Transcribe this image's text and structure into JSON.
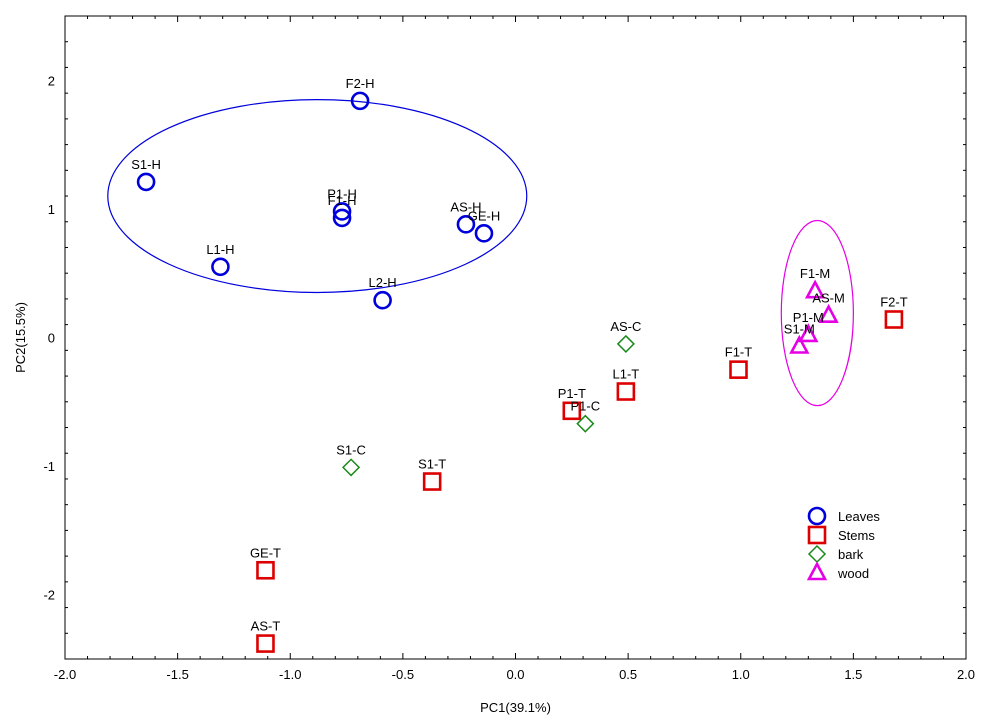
{
  "chart_data": {
    "type": "scatter",
    "title": "",
    "xlabel": "PC1(39.1%)",
    "ylabel": "PC2(15.5%)",
    "xlim": [
      -2.0,
      2.0
    ],
    "ylim": [
      -2.5,
      2.5
    ],
    "x_ticks": [
      -2.0,
      -1.5,
      -1.0,
      -0.5,
      0.0,
      0.5,
      1.0,
      1.5,
      2.0
    ],
    "x_tick_labels": [
      "-2.0",
      "-1.5",
      "-1.0",
      "-0.5",
      "0.0",
      "0.5",
      "1.0",
      "1.5",
      "2.0"
    ],
    "y_ticks": [
      -2,
      -1,
      0,
      1,
      2
    ],
    "y_tick_labels": [
      "-2",
      "-1",
      "0",
      "1",
      "2"
    ],
    "grid": false,
    "legend_position": "bottom-right",
    "series": [
      {
        "name": "Leaves",
        "marker": "circle",
        "color": "#0000dd",
        "points": [
          {
            "label": "S1-H",
            "x": -1.64,
            "y": 1.21
          },
          {
            "label": "F2-H",
            "x": -0.69,
            "y": 1.84
          },
          {
            "label": "P1-H",
            "x": -0.77,
            "y": 0.98
          },
          {
            "label": "F1-H",
            "x": -0.77,
            "y": 0.93
          },
          {
            "label": "AS-H",
            "x": -0.22,
            "y": 0.88
          },
          {
            "label": "GE-H",
            "x": -0.14,
            "y": 0.81
          },
          {
            "label": "L1-H",
            "x": -1.31,
            "y": 0.55
          },
          {
            "label": "L2-H",
            "x": -0.59,
            "y": 0.29
          }
        ]
      },
      {
        "name": "Stems",
        "marker": "square",
        "color": "#dd0000",
        "points": [
          {
            "label": "F2-T",
            "x": 1.68,
            "y": 0.14
          },
          {
            "label": "F1-T",
            "x": 0.99,
            "y": -0.25
          },
          {
            "label": "L1-T",
            "x": 0.49,
            "y": -0.42
          },
          {
            "label": "P1-T",
            "x": 0.25,
            "y": -0.57
          },
          {
            "label": "S1-T",
            "x": -0.37,
            "y": -1.12
          },
          {
            "label": "GE-T",
            "x": -1.11,
            "y": -1.81
          },
          {
            "label": "AS-T",
            "x": -1.11,
            "y": -2.38
          }
        ]
      },
      {
        "name": "bark",
        "marker": "diamond",
        "color": "#1a8a1a",
        "points": [
          {
            "label": "AS-C",
            "x": 0.49,
            "y": -0.05
          },
          {
            "label": "P1-C",
            "x": 0.31,
            "y": -0.67
          },
          {
            "label": "S1-C",
            "x": -0.73,
            "y": -1.01
          }
        ]
      },
      {
        "name": "wood",
        "marker": "triangle",
        "color": "#e600e6",
        "points": [
          {
            "label": "F1-M",
            "x": 1.33,
            "y": 0.36
          },
          {
            "label": "AS-M",
            "x": 1.39,
            "y": 0.17
          },
          {
            "label": "P1-M",
            "x": 1.3,
            "y": 0.02
          },
          {
            "label": "S1-M",
            "x": 1.26,
            "y": -0.07
          }
        ]
      }
    ],
    "ellipses": [
      {
        "series": "Leaves",
        "color": "#0000dd",
        "cx": -0.88,
        "cy": 1.1,
        "rx": 0.93,
        "ry": 0.75
      },
      {
        "series": "wood",
        "color": "#e600e6",
        "cx": 1.34,
        "cy": 0.19,
        "rx": 0.16,
        "ry": 0.72
      }
    ]
  }
}
